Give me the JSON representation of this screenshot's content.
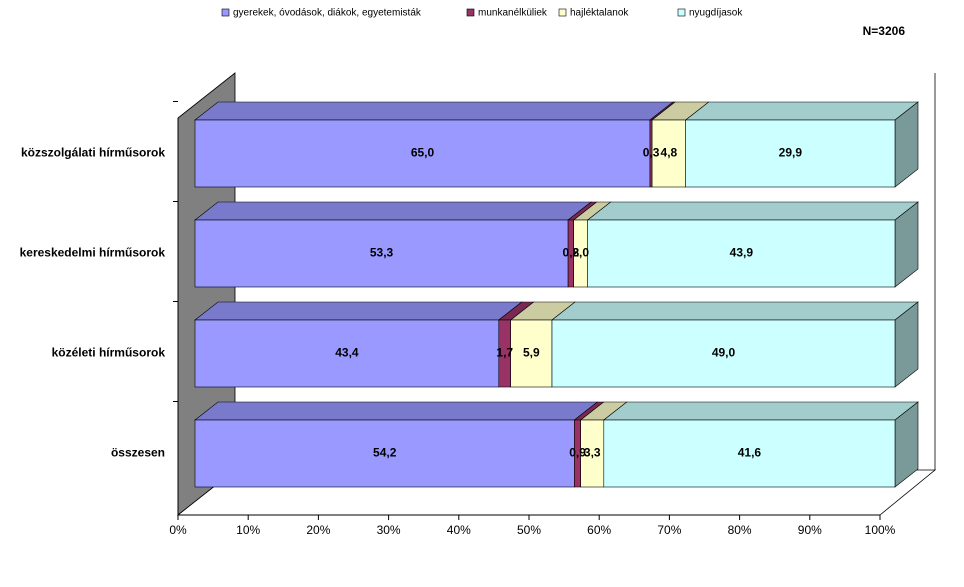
{
  "chart_data": {
    "type": "stacked_bar_3d_horizontal_percent",
    "subtitle": "N=3206",
    "categories": [
      "közszolgálati hírműsorok",
      "kereskedelmi hírműsorok",
      "közéleti hírműsorok",
      "összesen"
    ],
    "series": [
      {
        "name": "gyerekek, óvodások, diákok, egyetemisták",
        "color": "#9999ff",
        "values": [
          65.0,
          53.3,
          43.4,
          54.2
        ],
        "value_labels": [
          "65,0",
          "53,3",
          "43,4",
          "54,2"
        ]
      },
      {
        "name": "munkanélküliek",
        "color": "#993366",
        "values": [
          0.3,
          0.8,
          1.7,
          0.9
        ],
        "value_labels": [
          "0,3",
          "0,8",
          "1,7",
          "0,9"
        ]
      },
      {
        "name": "hajléktalanok",
        "color": "#ffffcc",
        "values": [
          4.8,
          2.0,
          5.9,
          3.3
        ],
        "value_labels": [
          "4,8",
          "2,0",
          "5,9",
          "3,3"
        ]
      },
      {
        "name": "nyugdíjasok",
        "color": "#ccffff",
        "values": [
          29.9,
          43.9,
          49.0,
          41.6
        ],
        "value_labels": [
          "29,9",
          "43,9",
          "49,0",
          "41,6"
        ]
      }
    ],
    "xlim": [
      0,
      100
    ],
    "xticks": [
      {
        "value": 0,
        "label": "0%"
      },
      {
        "value": 10,
        "label": "10%"
      },
      {
        "value": 20,
        "label": "20%"
      },
      {
        "value": 30,
        "label": "30%"
      },
      {
        "value": 40,
        "label": "40%"
      },
      {
        "value": 50,
        "label": "50%"
      },
      {
        "value": 60,
        "label": "60%"
      },
      {
        "value": 70,
        "label": "70%"
      },
      {
        "value": 80,
        "label": "80%"
      },
      {
        "value": 90,
        "label": "90%"
      },
      {
        "value": 100,
        "label": "100%"
      }
    ],
    "legend": "top"
  }
}
